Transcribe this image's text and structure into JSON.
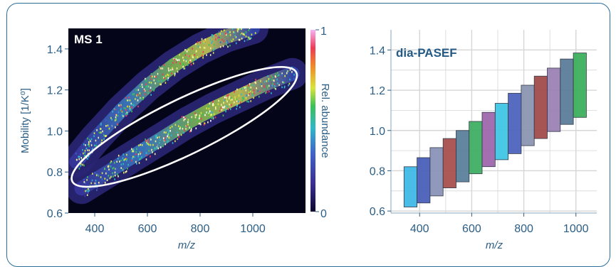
{
  "chart_data": [
    {
      "type": "heatmap",
      "title": "MS 1",
      "xlabel": "m/z",
      "ylabel": "Mobility [1/K⁰]",
      "xlim": [
        300,
        1200
      ],
      "ylim": [
        0.6,
        1.5
      ],
      "xticks": [
        400,
        600,
        800,
        1000
      ],
      "yticks": [
        0.6,
        0.8,
        1.0,
        1.2,
        1.4
      ],
      "colorbar": {
        "label": "Rel. abundance",
        "min": 0,
        "max": 1,
        "ticks": [
          "0",
          "1"
        ]
      },
      "bands": [
        {
          "x": [
            330,
            400,
            500,
            600,
            700,
            800,
            900,
            1000
          ],
          "y": [
            0.85,
            0.96,
            1.1,
            1.22,
            1.32,
            1.4,
            1.46,
            1.5
          ]
        },
        {
          "x": [
            350,
            450,
            550,
            650,
            750,
            850,
            950,
            1050,
            1150
          ],
          "y": [
            0.72,
            0.8,
            0.88,
            0.96,
            1.04,
            1.11,
            1.17,
            1.23,
            1.28
          ]
        }
      ],
      "highlight_ellipse": {
        "center": [
          740,
          1.02
        ],
        "description": "precursor region"
      },
      "colors": {
        "background": "#05051a",
        "low": "#2d2a8a",
        "mid": "#2fb7c9",
        "high": "#e1e93a",
        "top": "#ff3a7a"
      }
    },
    {
      "type": "bar",
      "title": "dia-PASEF",
      "xlabel": "m/z",
      "ylabel": "",
      "xlim": [
        290,
        1080
      ],
      "ylim": [
        0.59,
        1.5
      ],
      "xticks": [
        400,
        600,
        800,
        1000
      ],
      "yticks": [
        0.6,
        0.8,
        1.0,
        1.2,
        1.4
      ],
      "grid": true,
      "windows": [
        {
          "x0": 340,
          "x1": 390,
          "y0": 0.62,
          "y1": 0.82,
          "color": "#3fb8e6"
        },
        {
          "x0": 390,
          "x1": 440,
          "y0": 0.64,
          "y1": 0.865,
          "color": "#4a5fb8"
        },
        {
          "x0": 440,
          "x1": 490,
          "y0": 0.675,
          "y1": 0.915,
          "color": "#8a93b8"
        },
        {
          "x0": 490,
          "x1": 540,
          "y0": 0.715,
          "y1": 0.96,
          "color": "#a8504f"
        },
        {
          "x0": 540,
          "x1": 590,
          "y0": 0.745,
          "y1": 1.0,
          "color": "#5b7f9c"
        },
        {
          "x0": 590,
          "x1": 640,
          "y0": 0.785,
          "y1": 1.045,
          "color": "#3fae63"
        },
        {
          "x0": 640,
          "x1": 690,
          "y0": 0.82,
          "y1": 1.09,
          "color": "#9e67ad"
        },
        {
          "x0": 690,
          "x1": 740,
          "y0": 0.855,
          "y1": 1.135,
          "color": "#40c6e6"
        },
        {
          "x0": 740,
          "x1": 790,
          "y0": 0.885,
          "y1": 1.185,
          "color": "#4e63bd"
        },
        {
          "x0": 790,
          "x1": 840,
          "y0": 0.925,
          "y1": 1.225,
          "color": "#8c96b2"
        },
        {
          "x0": 840,
          "x1": 890,
          "y0": 0.96,
          "y1": 1.27,
          "color": "#a24c4b"
        },
        {
          "x0": 890,
          "x1": 940,
          "y0": 0.995,
          "y1": 1.31,
          "color": "#9b82b5"
        },
        {
          "x0": 940,
          "x1": 990,
          "y0": 1.03,
          "y1": 1.355,
          "color": "#5c7c99"
        },
        {
          "x0": 990,
          "x1": 1040,
          "y0": 1.065,
          "y1": 1.385,
          "color": "#3daf5d"
        }
      ]
    }
  ]
}
